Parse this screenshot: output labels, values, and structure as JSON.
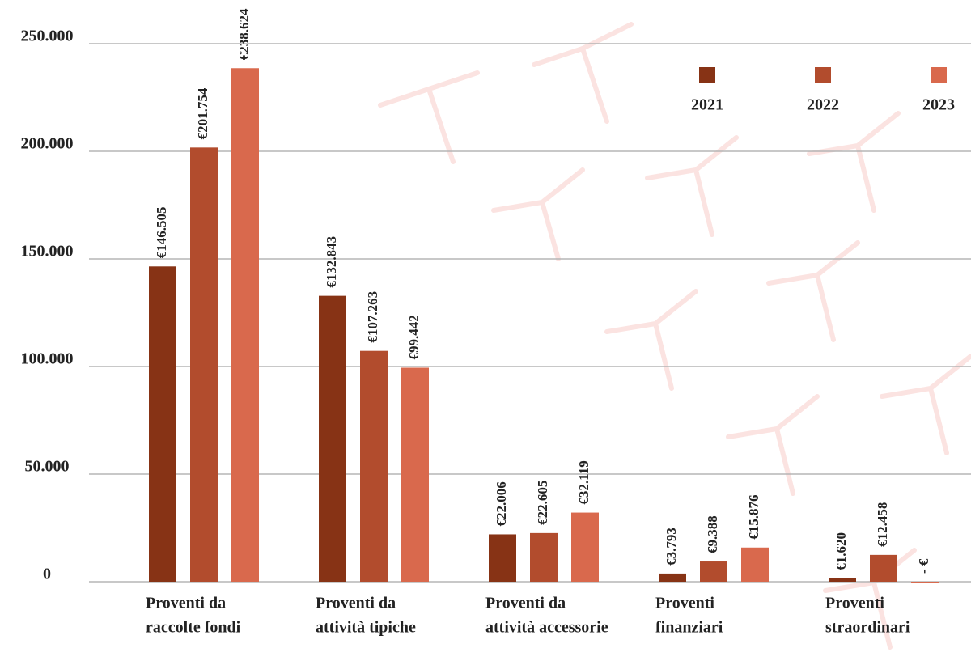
{
  "chart_data": {
    "type": "bar",
    "categories": [
      [
        "Proventi da",
        "raccolte fondi"
      ],
      [
        "Proventi da",
        "attività tipiche"
      ],
      [
        "Proventi da",
        "attività accessorie"
      ],
      [
        "Proventi",
        "finanziari"
      ],
      [
        "Proventi",
        "straordinari"
      ]
    ],
    "series": [
      {
        "name": "2021",
        "color": "#873315",
        "values": [
          146505,
          132843,
          22006,
          3793,
          1620
        ],
        "value_labels": [
          "€146.505",
          "€132.843",
          "€22.006",
          "€3.793",
          "€1.620"
        ]
      },
      {
        "name": "2022",
        "color": "#b24c2d",
        "values": [
          201754,
          107263,
          22605,
          9388,
          12458
        ],
        "value_labels": [
          "€201.754",
          "€107.263",
          "€22.605",
          "€9.388",
          "€12.458"
        ]
      },
      {
        "name": "2023",
        "color": "#d9694d",
        "values": [
          238624,
          99442,
          32119,
          15876,
          0
        ],
        "value_labels": [
          "€238.624",
          "€99.442",
          "€32.119",
          "€15.876",
          "- €"
        ]
      }
    ],
    "ylim": [
      0,
      250000
    ],
    "yticks": [
      0,
      {
        "value": 50000,
        "label": "50.000"
      },
      {
        "value": 100000,
        "label": "100.000"
      },
      {
        "value": 150000,
        "label": "150.000"
      },
      {
        "value": 200000,
        "label": "200.000"
      },
      {
        "value": 250000,
        "label": "250.000"
      }
    ],
    "grid": true,
    "legend": "top-right"
  }
}
